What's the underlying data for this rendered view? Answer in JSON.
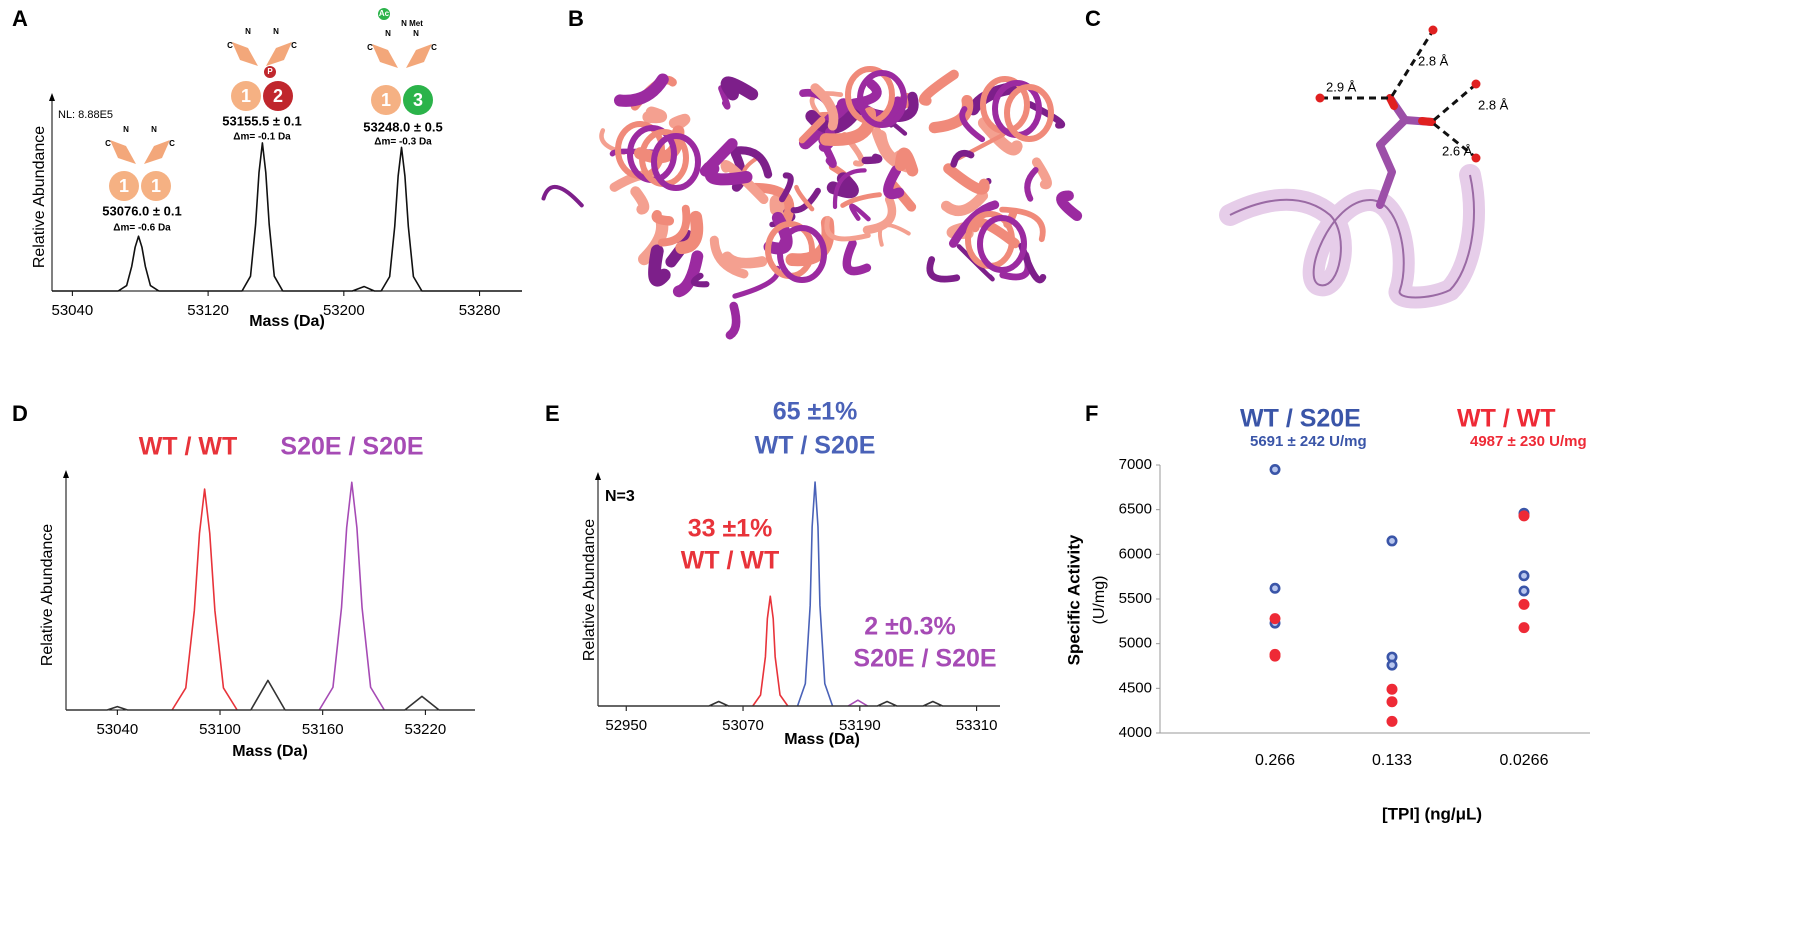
{
  "chart_data": [
    {
      "panel": "A",
      "type": "line",
      "xlim": [
        53028,
        53305
      ],
      "ylim": [
        0,
        127
      ],
      "xticks": [
        53040,
        53120,
        53200,
        53280
      ],
      "xlabel": "Mass (Da)",
      "ylabel": "Relative Abundance",
      "series": [
        {
          "color": "#111111",
          "x": [
            53028,
            53067,
            53072,
            53075,
            53077,
            53079,
            53081,
            53083,
            53086,
            53091,
            53140,
            53145,
            53148,
            53150,
            53152,
            53154,
            53156,
            53159,
            53164,
            53205,
            53212,
            53218,
            53222,
            53227,
            53230,
            53232,
            53234,
            53236,
            53238,
            53241,
            53246,
            53305
          ],
          "values": [
            0,
            0,
            3.7,
            16.7,
            29.6,
            37,
            29.6,
            16.7,
            3.7,
            0,
            0,
            10,
            45,
            80,
            100,
            80,
            45,
            10,
            0,
            0,
            3,
            0,
            0,
            9.7,
            43.7,
            77.6,
            97,
            77.6,
            43.7,
            9.7,
            0,
            0
          ]
        }
      ],
      "annotations": [
        {
          "text": "NL: 8.88E5"
        },
        {
          "text": "53076.0 ± 0.1"
        },
        {
          "text": "Δm= -0.6 Da"
        },
        {
          "text": "53155.5 ± 0.1"
        },
        {
          "text": "Δm= -0.1 Da"
        },
        {
          "text": "53248.0 ± 0.5"
        },
        {
          "text": "Δm= -0.3 Da"
        }
      ],
      "icons": [
        {
          "tags": [
            "N",
            "C",
            "N",
            "C"
          ],
          "badges": [
            {
              "text": "1",
              "color": "#f5b183"
            },
            {
              "text": "1",
              "color": "#f5b183"
            }
          ]
        },
        {
          "tags": [
            "N",
            "C",
            "N",
            "C",
            "P"
          ],
          "badges": [
            {
              "text": "1",
              "color": "#f5b183"
            },
            {
              "text": "2",
              "color": "#c0272d"
            }
          ]
        },
        {
          "tags": [
            "N",
            "C",
            "N",
            "C",
            "Ac",
            "N Met"
          ],
          "badges": [
            {
              "text": "1",
              "color": "#f5b183"
            },
            {
              "text": "3",
              "color": "#2bb34a"
            }
          ]
        }
      ]
    },
    {
      "panel": "D",
      "type": "line",
      "xlim": [
        53010,
        53249
      ],
      "ylim": [
        0,
        101
      ],
      "xticks": [
        53040,
        53100,
        53160,
        53220
      ],
      "xlabel": "Mass (Da)",
      "ylabel": "Relative Abundance",
      "series": [
        {
          "name": "WT / WT",
          "color": "#e8333a",
          "x": [
            53072,
            53080,
            53085,
            53088,
            53091,
            53094,
            53097,
            53102,
            53110
          ],
          "values": [
            0,
            9.7,
            43.7,
            77.6,
            97,
            77.6,
            43.7,
            9.7,
            0
          ]
        },
        {
          "name": "S20E / S20E",
          "color": "#a64bb5",
          "x": [
            53158,
            53166,
            53171,
            53174,
            53177,
            53180,
            53183,
            53188,
            53196
          ],
          "values": [
            0,
            10,
            45,
            80,
            100,
            80,
            45,
            10,
            0
          ]
        },
        {
          "color": "#333333",
          "x": [
            53010,
            53034,
            53040,
            53046,
            53118,
            53128,
            53138,
            53208,
            53218,
            53228,
            53249
          ],
          "values": [
            0,
            0,
            1.5,
            0,
            0,
            13,
            0,
            0,
            6,
            0,
            0
          ]
        }
      ]
    },
    {
      "panel": "E",
      "type": "line",
      "xlim": [
        52921,
        53334
      ],
      "ylim": [
        0,
        100
      ],
      "xticks": [
        52950,
        53070,
        53190,
        53310
      ],
      "xlabel": "Mass (Da)",
      "ylabel": "Relative Abundance",
      "series": [
        {
          "name": "WT / WT",
          "share": "33 ±1%",
          "color": "#e8333a",
          "x": [
            53080,
            53088,
            53093,
            53095,
            53098,
            53101,
            53103,
            53108,
            53116
          ],
          "values": [
            0,
            4.9,
            22,
            39,
            49,
            39,
            22,
            4.9,
            0
          ]
        },
        {
          "name": "WT / S20E",
          "share": "65 ±1%",
          "color": "#4a62b8",
          "x": [
            53126,
            53134,
            53139,
            53141,
            53144,
            53147,
            53149,
            53154,
            53162
          ],
          "values": [
            0,
            10,
            45,
            80,
            100,
            80,
            45,
            10,
            0
          ]
        },
        {
          "name": "S20E / S20E",
          "share": "2 ±0.3%",
          "color": "#a64bb5",
          "x": [
            53178,
            53188,
            53198
          ],
          "values": [
            0,
            2.6,
            0
          ]
        },
        {
          "color": "#333333",
          "x": [
            52921,
            53035,
            53045,
            53055,
            53208,
            53218,
            53228,
            53255,
            53265,
            53275,
            53334
          ],
          "values": [
            0,
            0,
            2,
            0,
            0,
            2,
            0,
            0,
            2,
            0,
            0
          ]
        }
      ],
      "annotations": [
        {
          "text": "N=3"
        }
      ]
    },
    {
      "panel": "F",
      "type": "scatter",
      "categories": [
        "0.266",
        "0.133",
        "0.0266"
      ],
      "ylim": [
        4000,
        7000
      ],
      "yticks": [
        4000,
        4500,
        5000,
        5500,
        6000,
        6500,
        7000
      ],
      "xlabel": "[TPI] (ng/μL)",
      "ylabel": "Specific Activity",
      "yunit": "(U/mg)",
      "series": [
        {
          "name": "WT / S20E",
          "summary": "5691 ± 242 U/mg",
          "color": "#3a55a8",
          "values": [
            [
              6950,
              5620,
              5230
            ],
            [
              6150,
              4850,
              4760
            ],
            [
              6460,
              5760,
              5590
            ]
          ]
        },
        {
          "name": "WT / WT",
          "summary": "4987 ± 230 U/mg",
          "color": "#ee2a36",
          "values": [
            [
              5280,
              4880,
              4860
            ],
            [
              4490,
              4350,
              4130
            ],
            [
              6430,
              5440,
              5180
            ]
          ]
        }
      ]
    }
  ],
  "structures": [
    {
      "panel": "B"
    },
    {
      "panel": "C",
      "distances": [
        "2.9 Å",
        "2.8 Å",
        "2.8 Å",
        "2.6 Å"
      ]
    }
  ]
}
